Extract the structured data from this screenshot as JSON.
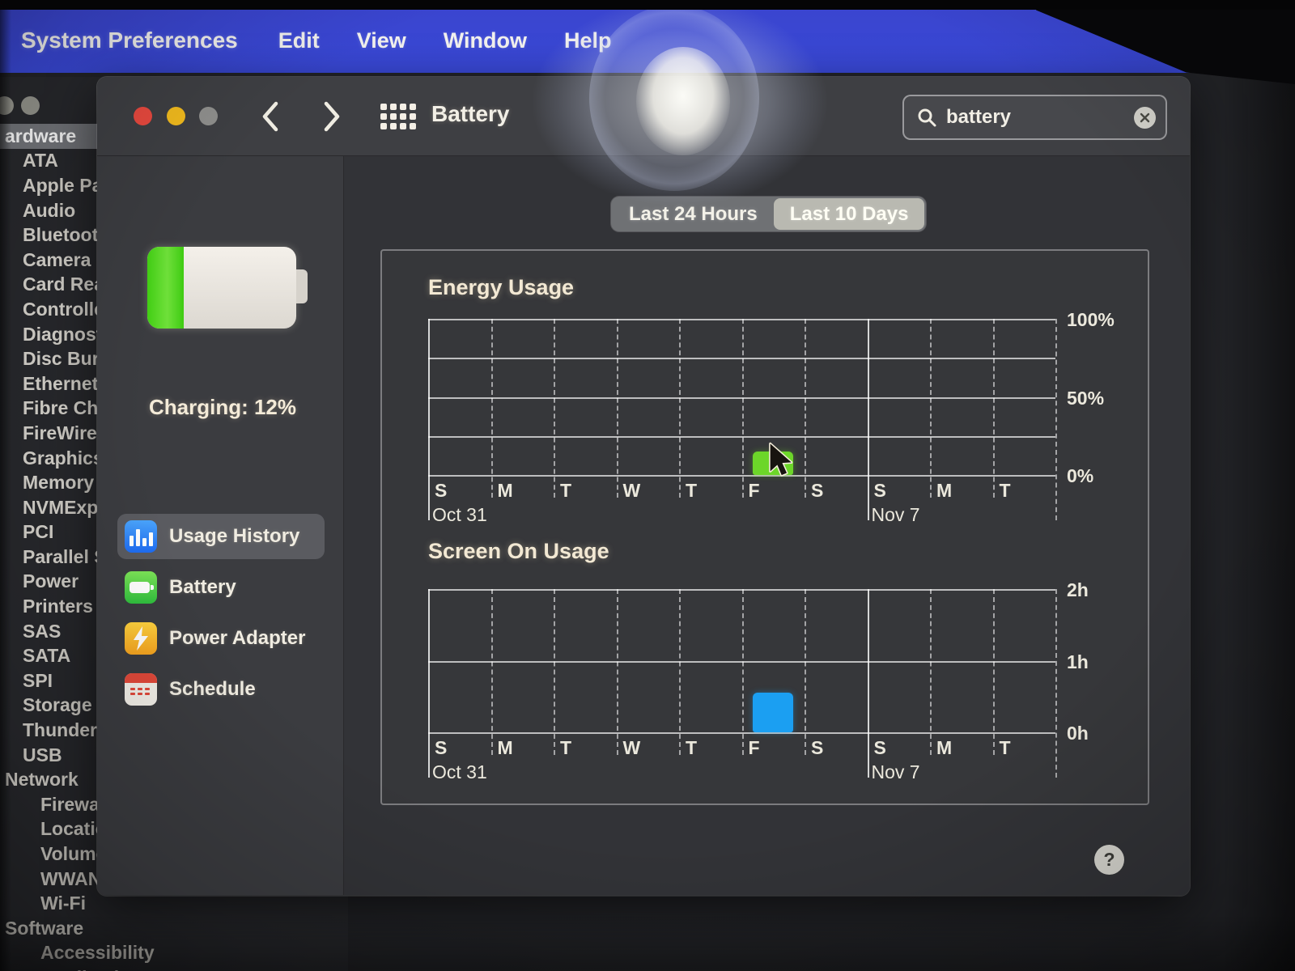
{
  "menu_bar": {
    "app_name": "System Preferences",
    "items": [
      "Edit",
      "View",
      "Window",
      "Help"
    ]
  },
  "background_app": {
    "rows": [
      {
        "label": "ardware",
        "indent": 0,
        "selected": true
      },
      {
        "label": "ATA",
        "indent": 1
      },
      {
        "label": "Apple Pay",
        "indent": 1
      },
      {
        "label": "Audio",
        "indent": 1
      },
      {
        "label": "Bluetooth",
        "indent": 1
      },
      {
        "label": "Camera",
        "indent": 1
      },
      {
        "label": "Card Read",
        "indent": 1
      },
      {
        "label": "Controller",
        "indent": 1
      },
      {
        "label": "Diagnosti",
        "indent": 1
      },
      {
        "label": "Disc Burn",
        "indent": 1
      },
      {
        "label": "Ethernet",
        "indent": 1
      },
      {
        "label": "Fibre Cha",
        "indent": 1
      },
      {
        "label": "FireWire",
        "indent": 1
      },
      {
        "label": "Graphics/",
        "indent": 1
      },
      {
        "label": "Memory",
        "indent": 1
      },
      {
        "label": "NVMExpre",
        "indent": 1
      },
      {
        "label": "PCI",
        "indent": 1
      },
      {
        "label": "Parallel S",
        "indent": 1
      },
      {
        "label": "Power",
        "indent": 1
      },
      {
        "label": "Printers",
        "indent": 1
      },
      {
        "label": "SAS",
        "indent": 1
      },
      {
        "label": "SATA",
        "indent": 1
      },
      {
        "label": "SPI",
        "indent": 1
      },
      {
        "label": "Storage",
        "indent": 1
      },
      {
        "label": "Thunderb",
        "indent": 1
      },
      {
        "label": "USB",
        "indent": 1
      },
      {
        "label": "Network",
        "indent": 0
      },
      {
        "label": "Firewall",
        "indent": 2
      },
      {
        "label": "Locations",
        "indent": 2
      },
      {
        "label": "Volumes",
        "indent": 2
      },
      {
        "label": "WWAN",
        "indent": 2
      },
      {
        "label": "Wi-Fi",
        "indent": 2
      },
      {
        "label": "Software",
        "indent": 0
      },
      {
        "label": "Accessibility",
        "indent": 2
      },
      {
        "label": "Applications",
        "indent": 2
      }
    ]
  },
  "window": {
    "title": "Battery",
    "search_value": "battery",
    "battery_status": "Charging: 12%",
    "battery_percent": 12,
    "sidebar_items": [
      {
        "label": "Usage History",
        "icon": "usage-history",
        "selected": true
      },
      {
        "label": "Battery",
        "icon": "battery",
        "selected": false
      },
      {
        "label": "Power Adapter",
        "icon": "power-adapter",
        "selected": false
      },
      {
        "label": "Schedule",
        "icon": "schedule",
        "selected": false
      }
    ],
    "segments": [
      {
        "label": "Last 24 Hours",
        "selected": false
      },
      {
        "label": "Last 10 Days",
        "selected": true
      }
    ],
    "help_label": "?"
  },
  "colors": {
    "energy_bar": "#6cd629",
    "screen_bar": "#1b9ff2",
    "menu_blue": "#3a47d3"
  },
  "chart_data": [
    {
      "type": "bar",
      "title": "Energy Usage",
      "categories": [
        "S",
        "M",
        "T",
        "W",
        "T",
        "F",
        "S",
        "S",
        "M",
        "T"
      ],
      "values": [
        0,
        0,
        0,
        0,
        0,
        15,
        0,
        0,
        0,
        0
      ],
      "ymax": 100,
      "n_hlines": 5,
      "yticks": [
        {
          "label": "100%",
          "frac": 0
        },
        {
          "label": "50%",
          "frac": 0.5
        },
        {
          "label": "0%",
          "frac": 1
        }
      ],
      "x_annotations": [
        {
          "label": "Oct 31",
          "index": 0,
          "solid": true
        },
        {
          "label": "Nov 7",
          "index": 7,
          "solid": true
        }
      ],
      "bar_color": "#6cd629",
      "legend": "none",
      "grid": "on"
    },
    {
      "type": "bar",
      "title": "Screen On Usage",
      "categories": [
        "S",
        "M",
        "T",
        "W",
        "T",
        "F",
        "S",
        "S",
        "M",
        "T"
      ],
      "values": [
        0,
        0,
        0,
        0,
        0,
        0.55,
        0,
        0,
        0,
        0
      ],
      "ymax": 2,
      "n_hlines": 3,
      "yticks": [
        {
          "label": "2h",
          "frac": 0
        },
        {
          "label": "1h",
          "frac": 0.5
        },
        {
          "label": "0h",
          "frac": 1
        }
      ],
      "x_annotations": [
        {
          "label": "Oct 31",
          "index": 0,
          "solid": true
        },
        {
          "label": "Nov 7",
          "index": 7,
          "solid": true
        }
      ],
      "bar_color": "#1b9ff2",
      "legend": "none",
      "grid": "on"
    }
  ]
}
